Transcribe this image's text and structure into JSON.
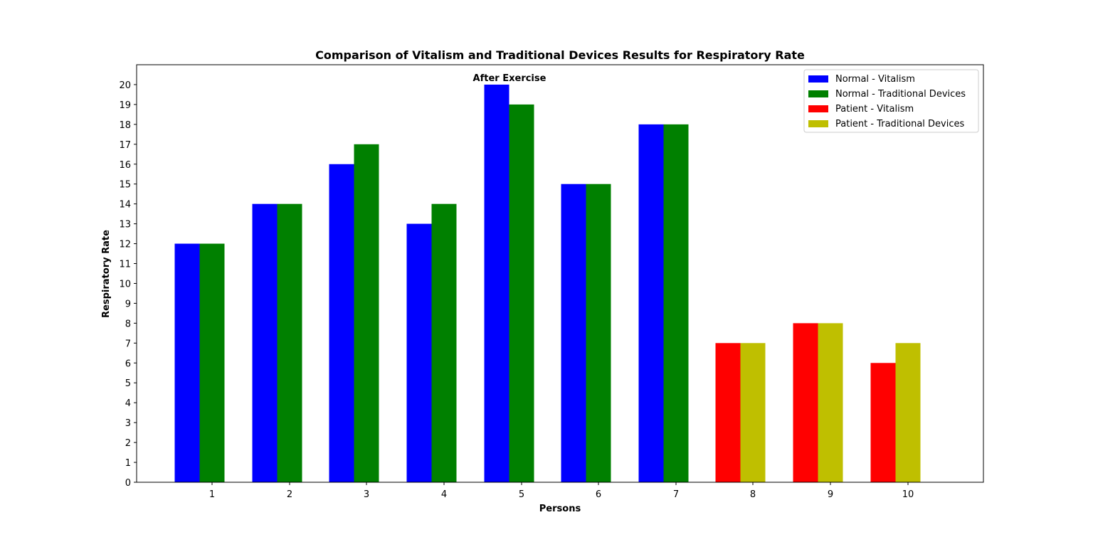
{
  "chart_data": {
    "type": "bar",
    "title": "Comparison of Vitalism and Traditional Devices Results for Respiratory Rate",
    "xlabel": "Persons",
    "ylabel": "Respiratory Rate",
    "annotation": "After Exercise",
    "categories": [
      "1",
      "2",
      "3",
      "4",
      "5",
      "6",
      "7",
      "8",
      "9",
      "10"
    ],
    "ylim": [
      0,
      21
    ],
    "yticks": [
      0,
      1,
      2,
      3,
      4,
      5,
      6,
      7,
      8,
      9,
      10,
      11,
      12,
      13,
      14,
      15,
      16,
      17,
      18,
      19,
      20
    ],
    "grid": false,
    "legend_position": "top-right",
    "series": [
      {
        "name": "Normal - Vitalism",
        "color": "#0000ff",
        "values": [
          12,
          14,
          16,
          13,
          20,
          15,
          18,
          null,
          null,
          null
        ]
      },
      {
        "name": "Normal - Traditional Devices",
        "color": "#008000",
        "values": [
          12,
          14,
          17,
          14,
          19,
          15,
          18,
          null,
          null,
          null
        ]
      },
      {
        "name": "Patient - Vitalism",
        "color": "#ff0000",
        "values": [
          null,
          null,
          null,
          null,
          null,
          null,
          null,
          7,
          8,
          6
        ]
      },
      {
        "name": "Patient - Traditional Devices",
        "color": "#bfbf00",
        "values": [
          null,
          null,
          null,
          null,
          null,
          null,
          null,
          7,
          8,
          7
        ]
      }
    ]
  }
}
